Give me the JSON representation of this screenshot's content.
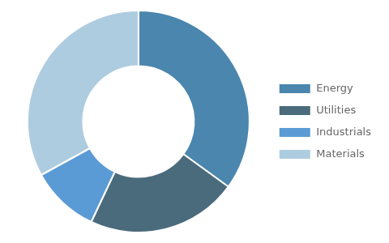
{
  "chart_data": {
    "type": "doughnut",
    "categories": [
      "Energy",
      "Utilities",
      "Industrials",
      "Materials"
    ],
    "values": [
      35,
      22,
      10,
      33
    ],
    "colors": [
      "#4A86AE",
      "#4A6B7C",
      "#5B9BD5",
      "#AECCE0"
    ],
    "legend": "right"
  }
}
